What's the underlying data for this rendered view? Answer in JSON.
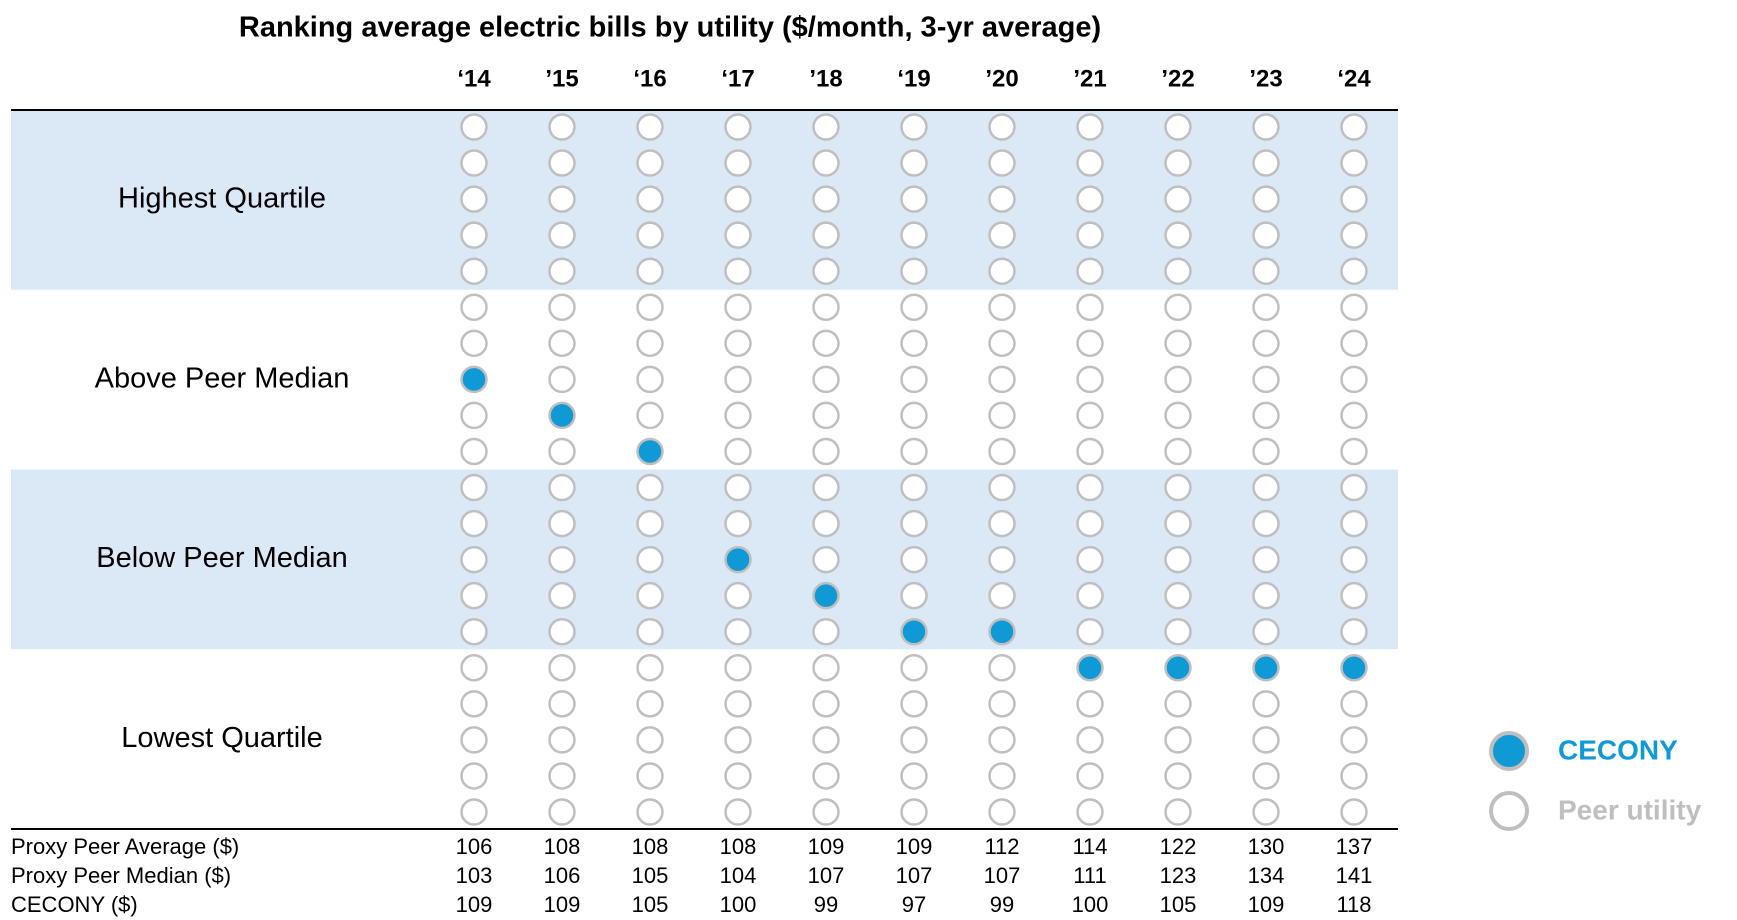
{
  "chart_data": {
    "type": "dot-rank",
    "title": "Ranking average electric bills by utility ($/month, 3-yr average)",
    "categories": [
      "‘14",
      "’15",
      "‘16",
      "‘17",
      "’18",
      "‘19",
      "’20",
      "’21",
      "’22",
      "’23",
      "‘24"
    ],
    "bands": [
      "Highest Quartile",
      "Above Peer Median",
      "Below Peer Median",
      "Lowest Quartile"
    ],
    "peer_count": 20,
    "series": [
      {
        "name": "CECONY",
        "color": "#0f9ad6",
        "values": [
          8,
          9,
          10,
          13,
          14,
          15,
          15,
          16,
          16,
          16,
          16
        ]
      }
    ],
    "peer_legend": {
      "name": "Peer utility",
      "color": "#bfbfbf"
    },
    "band_color": "#dbe8f6",
    "table": [
      {
        "label": "Proxy Peer Average ($)",
        "values": [
          106,
          108,
          108,
          108,
          109,
          109,
          112,
          114,
          122,
          130,
          137
        ]
      },
      {
        "label": "Proxy Peer Median ($)",
        "values": [
          103,
          106,
          105,
          104,
          107,
          107,
          107,
          111,
          123,
          134,
          141
        ]
      },
      {
        "label": "CECONY ($)",
        "values": [
          109,
          109,
          105,
          100,
          99,
          97,
          99,
          100,
          105,
          109,
          118
        ]
      }
    ]
  }
}
